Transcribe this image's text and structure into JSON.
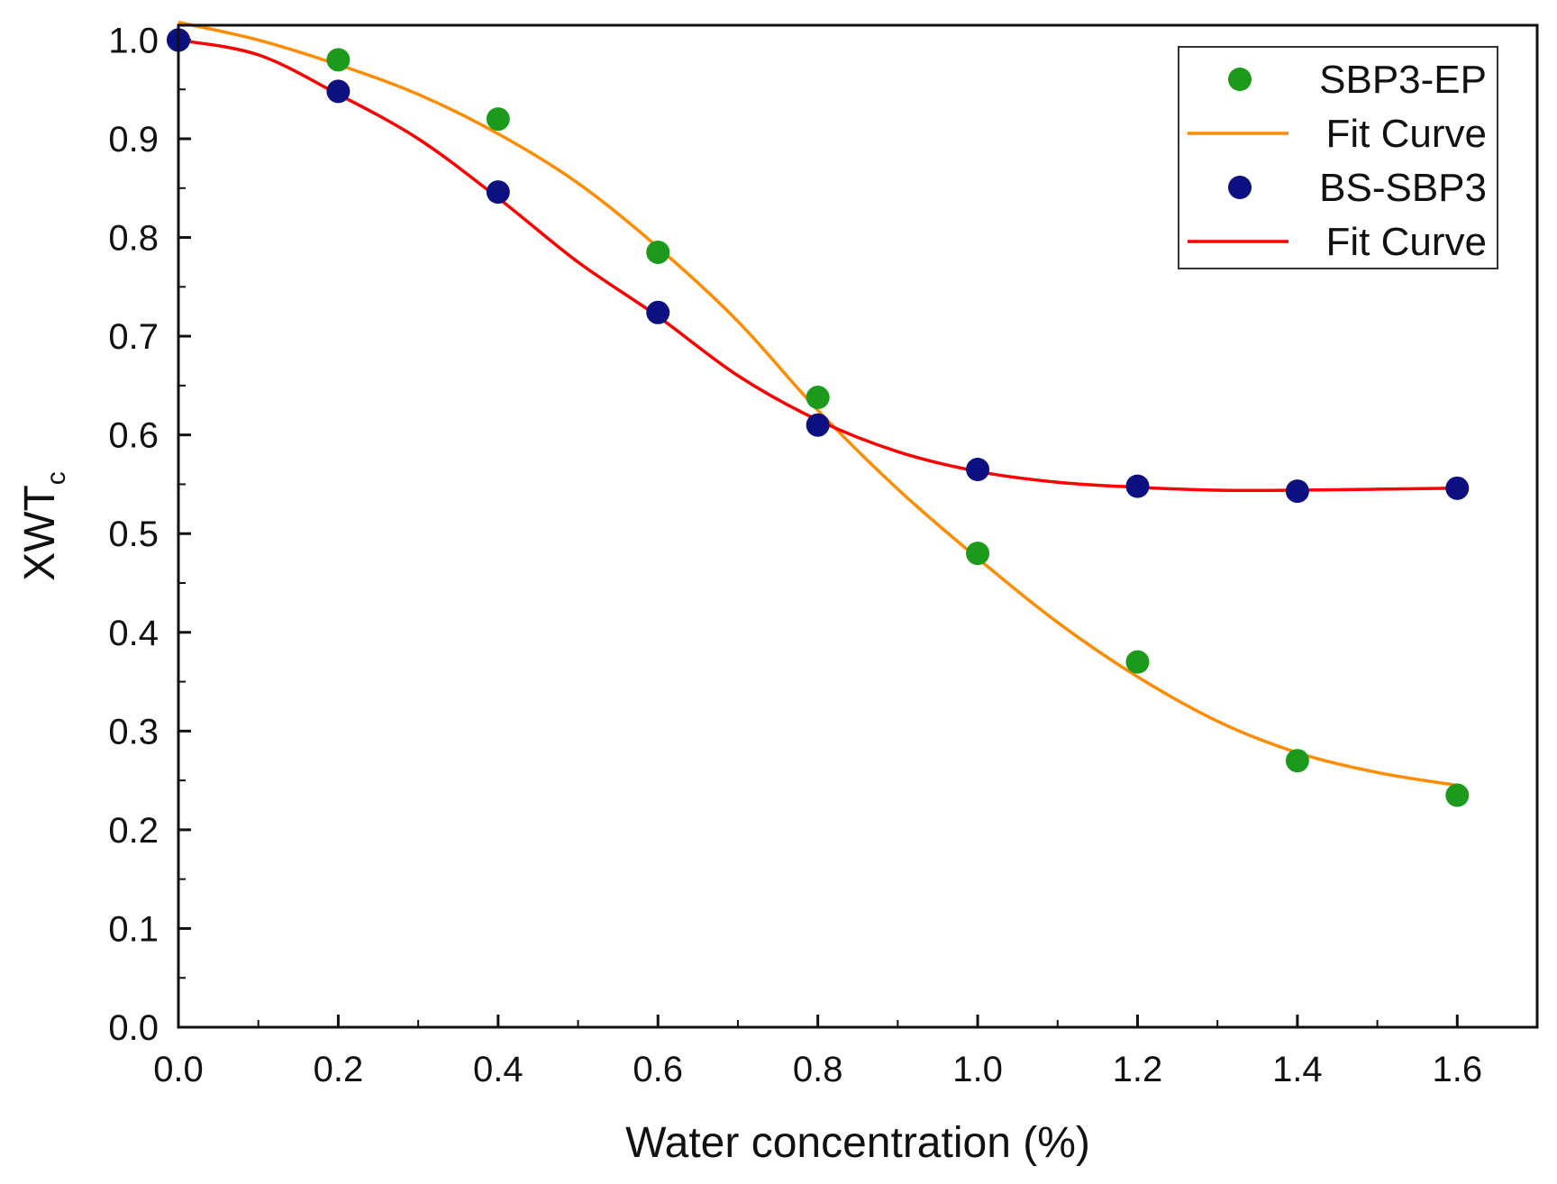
{
  "chart_data": {
    "type": "scatter",
    "xlabel": "Water concentration (%)",
    "ylabel": "XWT",
    "ylabel_subscript": "c",
    "xlim": [
      0.0,
      1.7
    ],
    "ylim": [
      0.0,
      1.0
    ],
    "x_ticks": [
      "0.0",
      "0.2",
      "0.4",
      "0.6",
      "0.8",
      "1.0",
      "1.2",
      "1.4",
      "1.6"
    ],
    "y_ticks": [
      "0.0",
      "0.1",
      "0.2",
      "0.3",
      "0.4",
      "0.5",
      "0.6",
      "0.7",
      "0.8",
      "0.9",
      "1.0"
    ],
    "x_tick_values": [
      0.0,
      0.2,
      0.4,
      0.6,
      0.8,
      1.0,
      1.2,
      1.4,
      1.6
    ],
    "y_tick_values": [
      0.0,
      0.1,
      0.2,
      0.3,
      0.4,
      0.5,
      0.6,
      0.7,
      0.8,
      0.9,
      1.0
    ],
    "grid": false,
    "legend_position": "top-right",
    "series": [
      {
        "name": "SBP3-EP",
        "kind": "points",
        "color": "#1b9a1b",
        "x": [
          0.0,
          0.2,
          0.4,
          0.6,
          0.8,
          1.0,
          1.2,
          1.4,
          1.6
        ],
        "y": [
          1.0,
          0.98,
          0.92,
          0.785,
          0.638,
          0.48,
          0.37,
          0.27,
          0.235
        ]
      },
      {
        "name": "Fit Curve",
        "kind": "line",
        "color": "#ff8c00",
        "x": [
          0.0,
          0.1,
          0.2,
          0.3,
          0.4,
          0.5,
          0.6,
          0.7,
          0.8,
          0.9,
          1.0,
          1.1,
          1.2,
          1.3,
          1.4,
          1.5,
          1.6
        ],
        "y": [
          1.018,
          1.0,
          0.975,
          0.945,
          0.905,
          0.855,
          0.79,
          0.715,
          0.625,
          0.545,
          0.475,
          0.41,
          0.355,
          0.31,
          0.278,
          0.258,
          0.245
        ]
      },
      {
        "name": "BS-SBP3",
        "kind": "points",
        "color": "#0d1080",
        "x": [
          0.0,
          0.2,
          0.4,
          0.6,
          0.8,
          1.0,
          1.2,
          1.4,
          1.6
        ],
        "y": [
          1.0,
          0.948,
          0.846,
          0.724,
          0.61,
          0.565,
          0.548,
          0.543,
          0.546
        ]
      },
      {
        "name": "Fit Curve",
        "kind": "line",
        "color": "#ff0000",
        "x": [
          0.0,
          0.1,
          0.2,
          0.3,
          0.4,
          0.5,
          0.6,
          0.7,
          0.8,
          0.9,
          1.0,
          1.1,
          1.2,
          1.3,
          1.4,
          1.5,
          1.6
        ],
        "y": [
          1.0,
          0.985,
          0.945,
          0.9,
          0.84,
          0.775,
          0.72,
          0.66,
          0.615,
          0.583,
          0.563,
          0.552,
          0.547,
          0.544,
          0.544,
          0.545,
          0.546
        ]
      }
    ]
  }
}
